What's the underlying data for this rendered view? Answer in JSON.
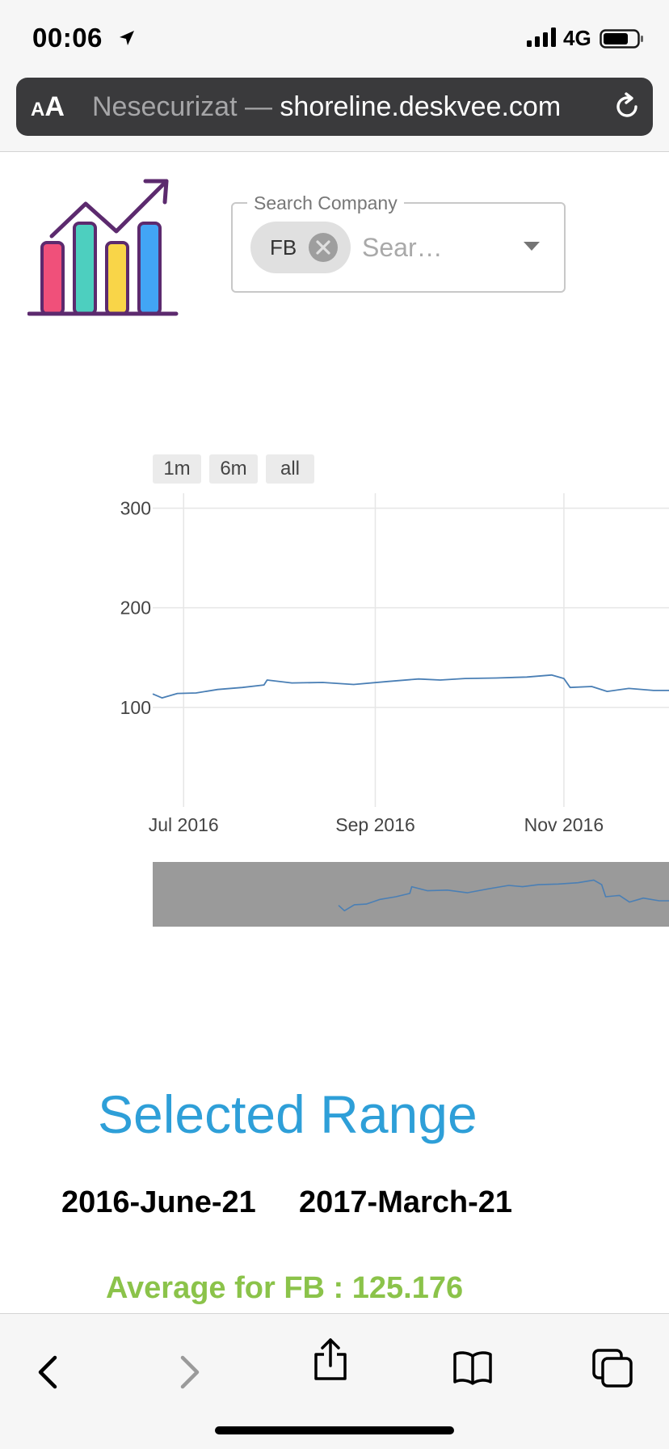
{
  "status_bar": {
    "time": "00:06",
    "network": "4G",
    "icons": [
      "location-arrow-icon",
      "signal-bars-icon",
      "battery-icon"
    ]
  },
  "browser": {
    "text_size_label": "AA",
    "url_prefix": "Nesecurizat — ",
    "url_host": "shoreline.deskvee.com"
  },
  "search": {
    "legend": "Search Company",
    "chip_label": "FB",
    "placeholder": "Sear…"
  },
  "range_buttons": [
    {
      "label": "1m"
    },
    {
      "label": "6m"
    },
    {
      "label": "all"
    }
  ],
  "chart_data": {
    "type": "line",
    "title": "",
    "xlabel": "",
    "ylabel": "",
    "x_ticks": [
      "Jul 2016",
      "Sep 2016",
      "Nov 2016"
    ],
    "y_ticks": [
      100,
      200,
      300
    ],
    "series": [
      {
        "color": "#4a7fb5",
        "x": [
          "2016-06-21",
          "2016-06-24",
          "2016-06-29",
          "2016-07-05",
          "2016-07-12",
          "2016-07-20",
          "2016-07-27",
          "2016-07-28",
          "2016-08-05",
          "2016-08-15",
          "2016-08-25",
          "2016-09-05",
          "2016-09-15",
          "2016-09-22",
          "2016-09-30",
          "2016-10-10",
          "2016-10-20",
          "2016-10-28",
          "2016-11-01",
          "2016-11-03",
          "2016-11-10",
          "2016-11-15",
          "2016-11-22",
          "2016-11-30",
          "2016-12-05"
        ],
        "y": [
          113.5,
          109.5,
          114,
          114.5,
          118,
          120,
          122.5,
          127.5,
          124.5,
          125,
          123,
          126,
          128.5,
          127.5,
          129,
          129.5,
          130.5,
          132.5,
          129,
          120,
          121,
          116,
          119,
          117,
          117
        ]
      }
    ],
    "ylim": [
      0,
      315
    ],
    "xlim": [
      "2016-06-21",
      "2016-12-05"
    ],
    "grid": true,
    "range_selector": [
      "1m",
      "6m",
      "all"
    ],
    "range_slider": true
  },
  "summary": {
    "title": "Selected Range",
    "start_date": "2016-June-21",
    "end_date": "2017-March-21",
    "average_text": "Average for FB : 125.176"
  },
  "toolbar": {
    "icons": [
      "back-icon",
      "forward-icon",
      "share-icon",
      "bookmarks-icon",
      "tabs-icon"
    ]
  }
}
